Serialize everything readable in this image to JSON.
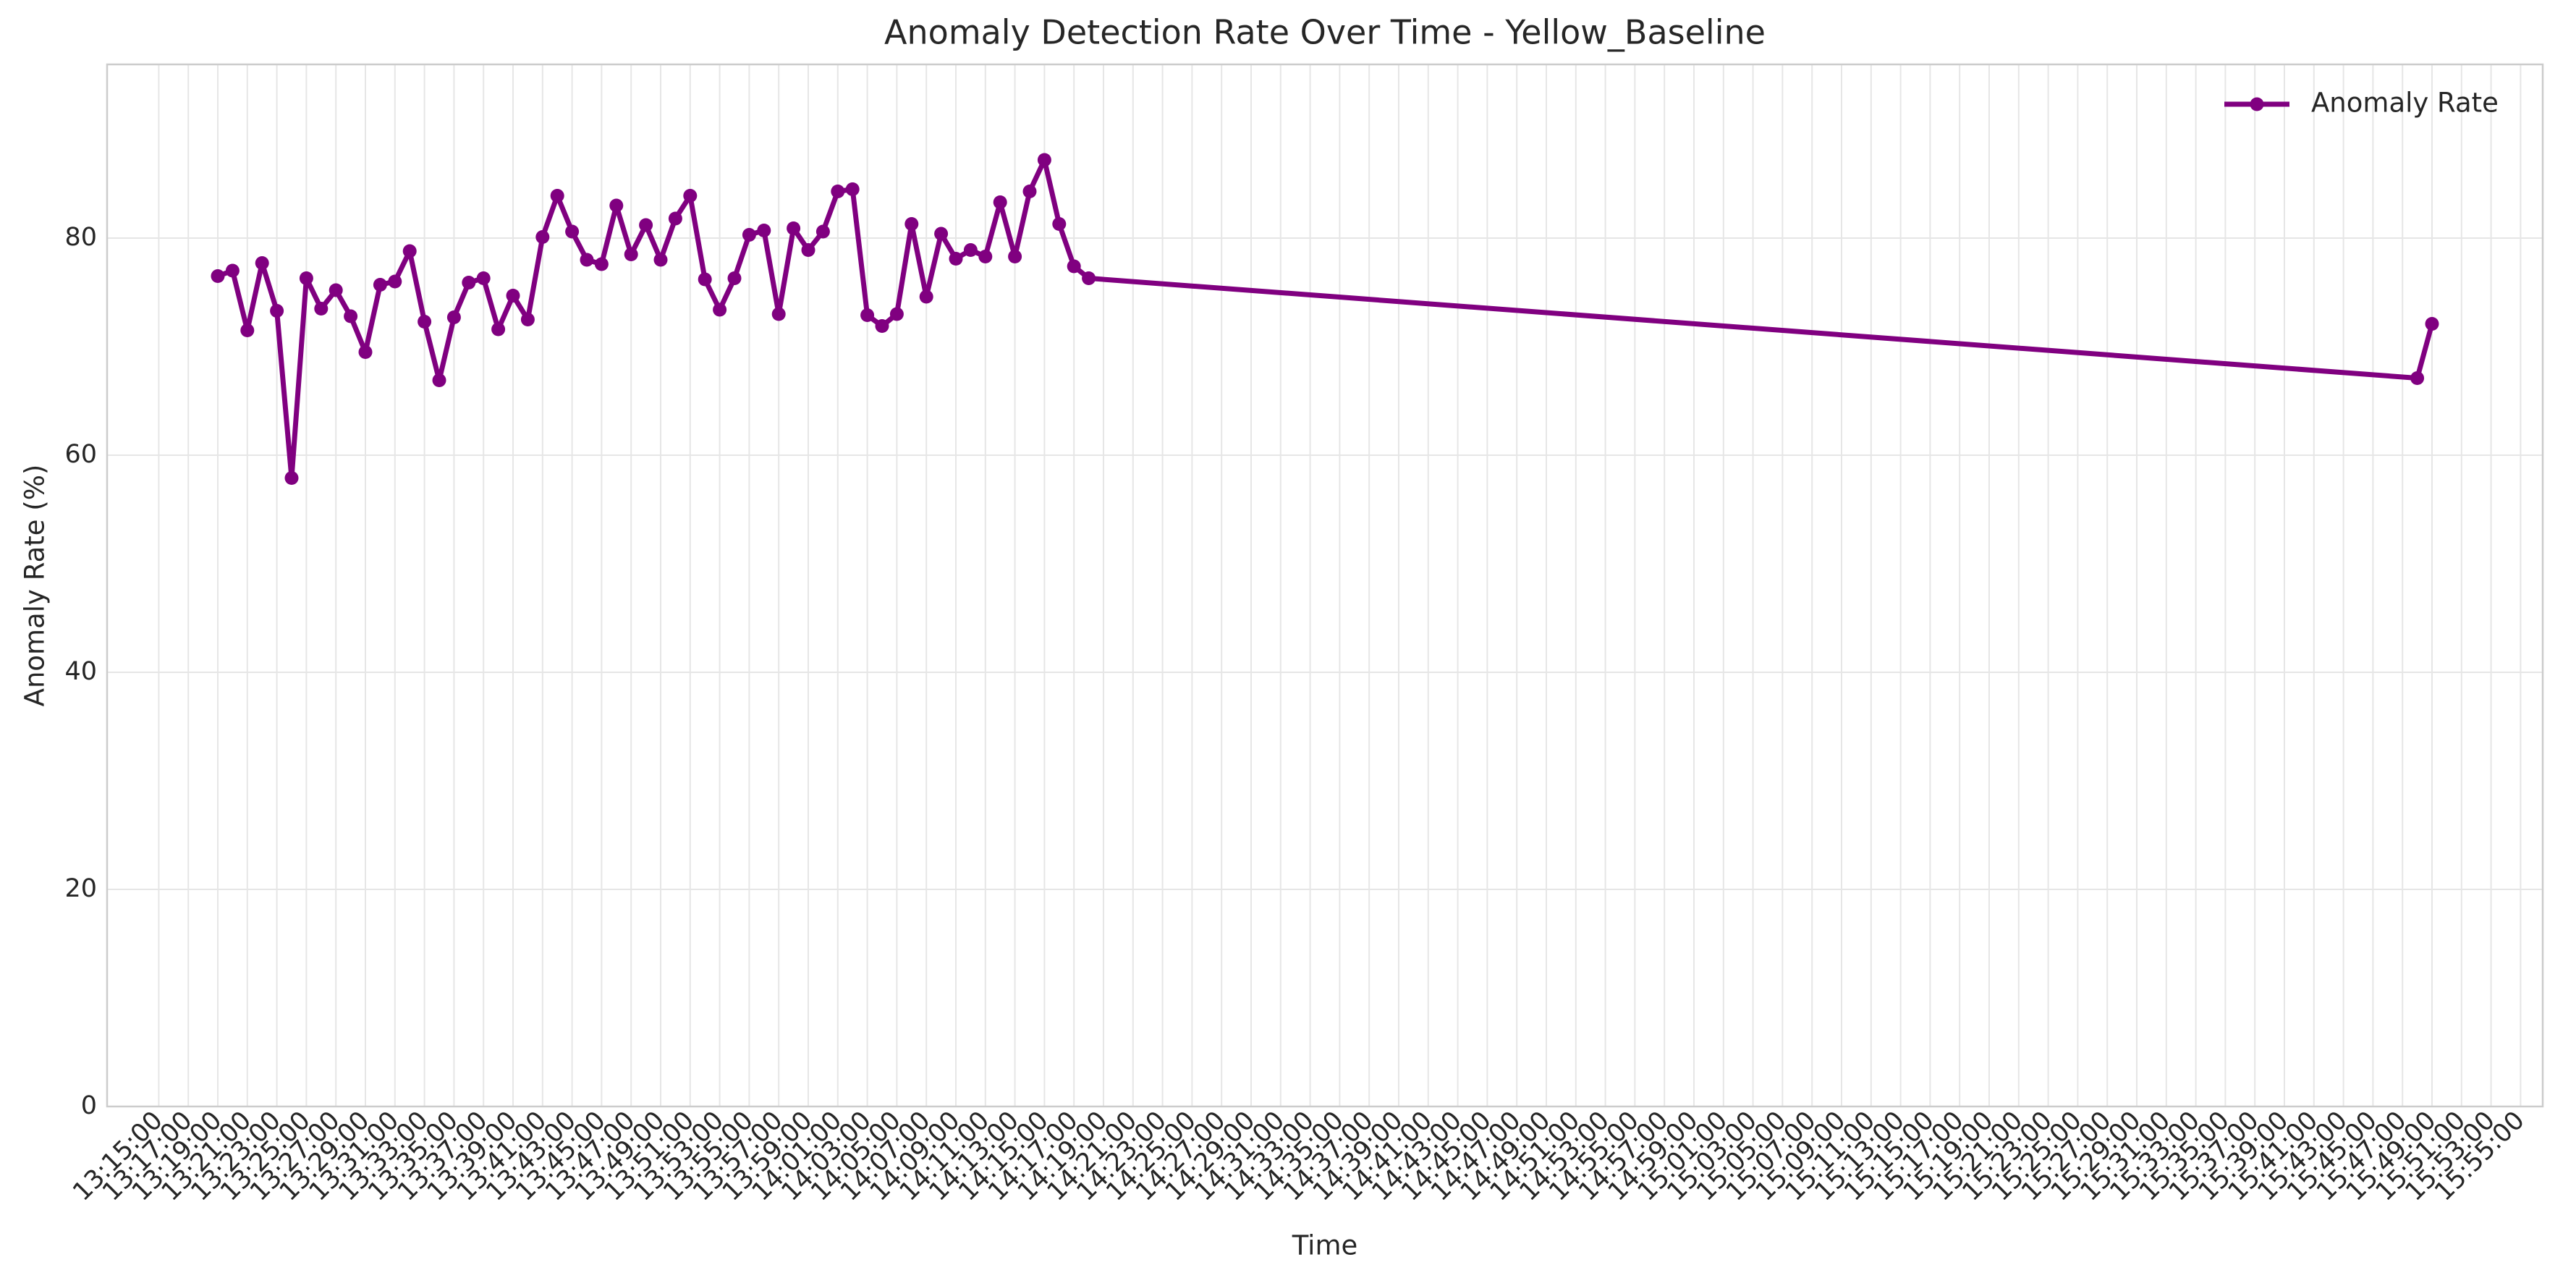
{
  "chart_data": {
    "type": "line",
    "title": "Anomaly Detection Rate Over Time - Yellow_Baseline",
    "x_label": "Time",
    "y_label": "Anomaly Rate (%)",
    "x": [
      "13:19:00",
      "13:20:00",
      "13:21:00",
      "13:22:00",
      "13:23:00",
      "13:24:00",
      "13:25:00",
      "13:26:00",
      "13:27:00",
      "13:28:00",
      "13:29:00",
      "13:30:00",
      "13:31:00",
      "13:32:00",
      "13:33:00",
      "13:34:00",
      "13:35:00",
      "13:36:00",
      "13:37:00",
      "13:38:00",
      "13:39:00",
      "13:40:00",
      "13:41:00",
      "13:42:00",
      "13:43:00",
      "13:44:00",
      "13:45:00",
      "13:46:00",
      "13:47:00",
      "13:48:00",
      "13:49:00",
      "13:50:00",
      "13:51:00",
      "13:52:00",
      "13:53:00",
      "13:54:00",
      "13:55:00",
      "13:56:00",
      "13:57:00",
      "13:58:00",
      "13:59:00",
      "14:00:00",
      "14:01:00",
      "14:02:00",
      "14:03:00",
      "14:04:00",
      "14:05:00",
      "14:06:00",
      "14:07:00",
      "14:08:00",
      "14:09:00",
      "14:10:00",
      "14:11:00",
      "14:12:00",
      "14:13:00",
      "14:14:00",
      "14:15:00",
      "14:16:00",
      "14:17:00",
      "14:18:00",
      "15:48:00",
      "15:49:00"
    ],
    "series": [
      {
        "name": "Anomaly Rate",
        "color": "#800080",
        "values": [
          76.5,
          77,
          71.5,
          77.7,
          73.3,
          57.9,
          76.3,
          73.5,
          75.2,
          72.8,
          69.5,
          75.7,
          76,
          78.8,
          72.3,
          66.9,
          72.7,
          75.9,
          76.3,
          71.6,
          74.7,
          72.5,
          80.1,
          83.9,
          80.6,
          78,
          77.6,
          83,
          78.5,
          81.2,
          78,
          81.8,
          83.9,
          76.2,
          73.4,
          76.3,
          80.3,
          80.7,
          73,
          80.9,
          78.9,
          80.6,
          84.3,
          84.5,
          72.9,
          71.9,
          73,
          81.3,
          74.6,
          80.4,
          78.1,
          78.9,
          78.3,
          83.3,
          78.3,
          84.3,
          87.2,
          81.3,
          77.4,
          76.3,
          67.1,
          72.1
        ]
      }
    ],
    "xlim": [
      "13:11:30",
      "15:56:30"
    ],
    "xticks": [
      "13:15:00",
      "13:17:00",
      "13:19:00",
      "13:21:00",
      "13:23:00",
      "13:25:00",
      "13:27:00",
      "13:29:00",
      "13:31:00",
      "13:33:00",
      "13:35:00",
      "13:37:00",
      "13:39:00",
      "13:41:00",
      "13:43:00",
      "13:45:00",
      "13:47:00",
      "13:49:00",
      "13:51:00",
      "13:53:00",
      "13:55:00",
      "13:57:00",
      "13:59:00",
      "14:01:00",
      "14:03:00",
      "14:05:00",
      "14:07:00",
      "14:09:00",
      "14:11:00",
      "14:13:00",
      "14:15:00",
      "14:17:00",
      "14:19:00",
      "14:21:00",
      "14:23:00",
      "14:25:00",
      "14:27:00",
      "14:29:00",
      "14:31:00",
      "14:33:00",
      "14:35:00",
      "14:37:00",
      "14:39:00",
      "14:41:00",
      "14:43:00",
      "14:45:00",
      "14:47:00",
      "14:49:00",
      "14:51:00",
      "14:53:00",
      "14:55:00",
      "14:57:00",
      "14:59:00",
      "15:01:00",
      "15:03:00",
      "15:05:00",
      "15:07:00",
      "15:09:00",
      "15:11:00",
      "15:13:00",
      "15:15:00",
      "15:17:00",
      "15:19:00",
      "15:21:00",
      "15:23:00",
      "15:25:00",
      "15:27:00",
      "15:29:00",
      "15:31:00",
      "15:33:00",
      "15:35:00",
      "15:37:00",
      "15:39:00",
      "15:41:00",
      "15:43:00",
      "15:45:00",
      "15:47:00",
      "15:49:00",
      "15:51:00",
      "15:53:00",
      "15:55:00"
    ],
    "ylim": [
      0,
      96
    ],
    "yticks": [
      0,
      20,
      40,
      60,
      80
    ],
    "grid": true,
    "legend": "upper right"
  }
}
